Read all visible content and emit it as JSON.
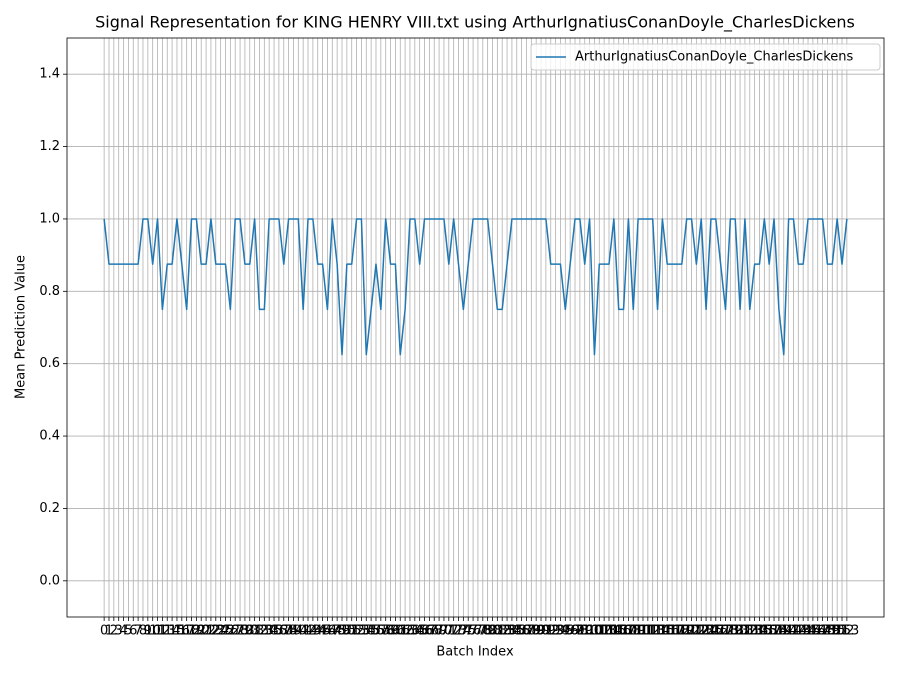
{
  "chart_data": {
    "type": "line",
    "title": "Signal Representation for KING HENRY VIII.txt using ArthurIgnatiusConanDoyle_CharlesDickens",
    "x_label": "Batch Index",
    "y_label": "Mean Prediction Value",
    "x": [
      0,
      1,
      2,
      3,
      4,
      5,
      6,
      7,
      8,
      9,
      10,
      11,
      12,
      13,
      14,
      15,
      16,
      17,
      18,
      19,
      20,
      21,
      22,
      23,
      24,
      25,
      26,
      27,
      28,
      29,
      30,
      31,
      32,
      33,
      34,
      35,
      36,
      37,
      38,
      39,
      40,
      41,
      42,
      43,
      44,
      45,
      46,
      47,
      48,
      49,
      50,
      51,
      52,
      53,
      54,
      55,
      56,
      57,
      58,
      59,
      60,
      61,
      62,
      63,
      64,
      65,
      66,
      67,
      68,
      69,
      70,
      71,
      72,
      73,
      74,
      75,
      76,
      77,
      78,
      79,
      80,
      81,
      82,
      83,
      84,
      85,
      86,
      87,
      88,
      89,
      90,
      91,
      92,
      93,
      94,
      95,
      96,
      97,
      98,
      99,
      100,
      101,
      102,
      103,
      104,
      105,
      106,
      107,
      108,
      109,
      110,
      111,
      112,
      113,
      114,
      115,
      116,
      117,
      118,
      119,
      120,
      121,
      122,
      123,
      124,
      125,
      126,
      127,
      128,
      129,
      130,
      131,
      132,
      133,
      134,
      135,
      136,
      137,
      138,
      139,
      140,
      141,
      142,
      143,
      144,
      145,
      146,
      147,
      148,
      149,
      150,
      151,
      152,
      153
    ],
    "series": [
      {
        "name": "ArthurIgnatiusConanDoyle_CharlesDickens",
        "color": "#1f77b4",
        "values": [
          1,
          0.875,
          0.875,
          0.875,
          0.875,
          0.875,
          0.875,
          0.875,
          1,
          1,
          0.875,
          1,
          0.75,
          0.875,
          0.875,
          1,
          0.875,
          0.75,
          1,
          1,
          0.875,
          0.875,
          1,
          0.875,
          0.875,
          0.875,
          0.75,
          1,
          1,
          0.875,
          0.875,
          1,
          0.75,
          0.75,
          1,
          1,
          1,
          0.875,
          1,
          1,
          1,
          0.75,
          1,
          1,
          0.875,
          0.875,
          0.75,
          1,
          0.875,
          0.625,
          0.875,
          0.875,
          1,
          1,
          0.625,
          0.75,
          0.875,
          0.75,
          1,
          0.875,
          0.875,
          0.625,
          0.75,
          1,
          1,
          0.875,
          1,
          1,
          1,
          1,
          1,
          0.875,
          1,
          0.875,
          0.75,
          0.875,
          1,
          1,
          1,
          1,
          0.875,
          0.75,
          0.75,
          0.875,
          1,
          1,
          1,
          1,
          1,
          1,
          1,
          1,
          0.875,
          0.875,
          0.875,
          0.75,
          0.875,
          1,
          1,
          0.875,
          1,
          0.625,
          0.875,
          0.875,
          0.875,
          1,
          0.75,
          0.75,
          1,
          0.75,
          1,
          1,
          1,
          1,
          0.75,
          1,
          0.875,
          0.875,
          0.875,
          0.875,
          1,
          1,
          0.875,
          1,
          0.75,
          1,
          1,
          0.875,
          0.75,
          1,
          1,
          0.75,
          1,
          0.75,
          0.875,
          0.875,
          1,
          0.875,
          1,
          0.75,
          0.625,
          1,
          1,
          0.875,
          0.875,
          1,
          1,
          1,
          1,
          0.875,
          0.875,
          1,
          0.875,
          1
        ]
      }
    ],
    "xlim": [
      -7.65,
      160.65
    ],
    "ylim": [
      -0.1,
      1.5
    ],
    "yticks": [
      {
        "value": 0,
        "label": "0.0"
      },
      {
        "value": 0.2,
        "label": "0.2"
      },
      {
        "value": 0.4,
        "label": "0.4"
      },
      {
        "value": 0.6,
        "label": "0.6"
      },
      {
        "value": 0.8,
        "label": "0.8"
      },
      {
        "value": 1,
        "label": "1.0"
      },
      {
        "value": 1.2,
        "label": "1.2"
      },
      {
        "value": 1.4,
        "label": "1.4"
      }
    ],
    "grid": true,
    "legend": "upper-right"
  }
}
